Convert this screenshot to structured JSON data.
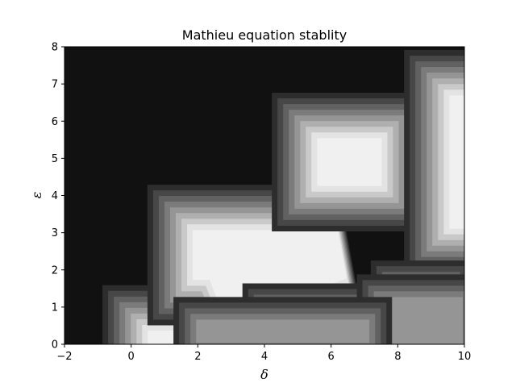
{
  "chart_data": {
    "type": "heatmap",
    "title": "Mathieu equation stablity",
    "xlabel": "δ",
    "ylabel": "ε",
    "xlim": [
      -2,
      10
    ],
    "ylim": [
      0,
      8
    ],
    "x_ticks": [
      "−2",
      "0",
      "2",
      "4",
      "6",
      "8",
      "10"
    ],
    "x_tick_values": [
      -2,
      0,
      2,
      4,
      6,
      8,
      10
    ],
    "y_ticks": [
      "0",
      "1",
      "2",
      "3",
      "4",
      "5",
      "6",
      "7",
      "8"
    ],
    "y_tick_values": [
      0,
      1,
      2,
      3,
      4,
      5,
      6,
      7,
      8
    ],
    "grid": false,
    "colormap": "gray",
    "level_colors": [
      "#111111",
      "#2d2d2d",
      "#474747",
      "#616161",
      "#7b7b7b",
      "#959595",
      "#afafaf",
      "#c9c9c9",
      "#e3e3e3",
      "#f0f0f0"
    ],
    "regions": [
      {
        "name": "low-delta-band",
        "level": 9,
        "radius": 0.3,
        "polyline": [
          [
            0.8,
            0.1
          ],
          [
            2.6,
            0.1
          ]
        ]
      },
      {
        "name": "triangle-tongue",
        "level": 9,
        "radius": 0.75,
        "polyline": [
          [
            2.6,
            2.4
          ],
          [
            6.2,
            2.4
          ],
          [
            3.3,
            1.4
          ]
        ]
      },
      {
        "name": "mid-band",
        "level": 9,
        "radius": 0.3,
        "polyline": [
          [
            5.0,
            0.15
          ],
          [
            7.6,
            0.15
          ]
        ]
      },
      {
        "name": "upper-octagon",
        "level": 9,
        "radius": 0.72,
        "polyline": [
          [
            6.3,
            4.9
          ],
          [
            6.8,
            4.9
          ]
        ]
      },
      {
        "name": "right-edge-band",
        "level": 9,
        "radius": 0.55,
        "polyline": [
          [
            10.1,
            3.6
          ],
          [
            10.1,
            6.2
          ]
        ]
      },
      {
        "name": "diamond-peak",
        "level": 9,
        "radius": 0.15,
        "polyline": [
          [
            8.7,
            0.9
          ],
          [
            8.7,
            0.9
          ]
        ]
      },
      {
        "name": "diamond-base",
        "level": 5,
        "radius": 1.25,
        "polyline": [
          [
            8.7,
            0.15
          ],
          [
            8.7,
            0.15
          ]
        ]
      },
      {
        "name": "valley-ridge",
        "level": 5,
        "radius": 0.35,
        "polyline": [
          [
            2.3,
            0.35
          ],
          [
            4.7,
            0.35
          ],
          [
            6.8,
            0.35
          ]
        ]
      }
    ]
  }
}
